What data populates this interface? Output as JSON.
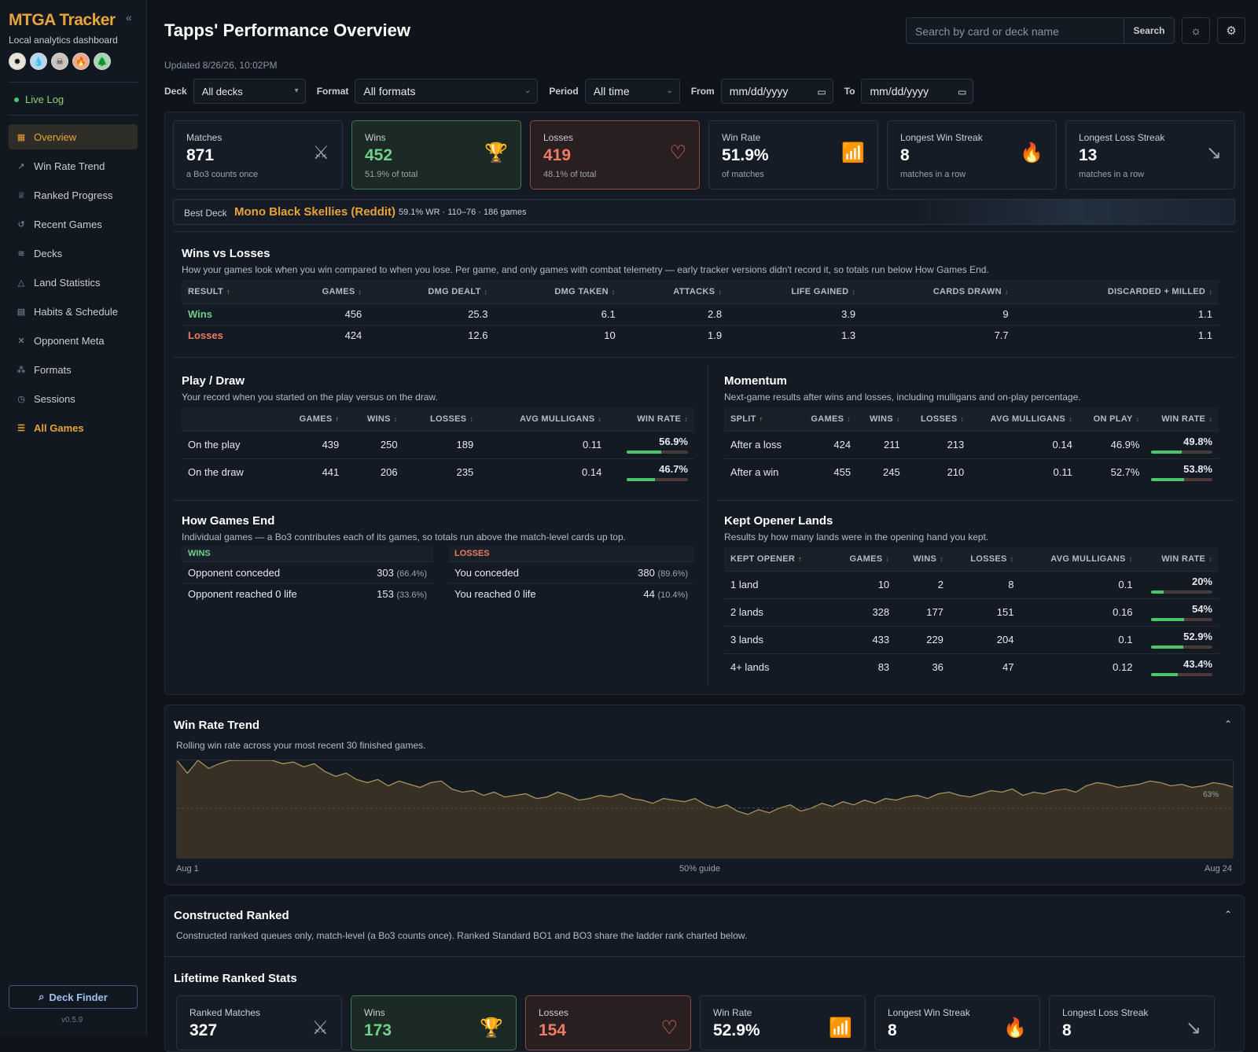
{
  "sidebar": {
    "logo": "MTGA Tracker",
    "collapse": "«",
    "tagline": "Local analytics dashboard",
    "mana": [
      "W",
      "U",
      "B",
      "R",
      "G"
    ],
    "live_log": "Live Log",
    "items": [
      {
        "label": "Overview",
        "icon": "▦"
      },
      {
        "label": "Win Rate Trend",
        "icon": "↗"
      },
      {
        "label": "Ranked Progress",
        "icon": "♕"
      },
      {
        "label": "Recent Games",
        "icon": "↺"
      },
      {
        "label": "Decks",
        "icon": "≋"
      },
      {
        "label": "Land Statistics",
        "icon": "△"
      },
      {
        "label": "Habits & Schedule",
        "icon": "▤"
      },
      {
        "label": "Opponent Meta",
        "icon": "✕"
      },
      {
        "label": "Formats",
        "icon": "⁂"
      },
      {
        "label": "Sessions",
        "icon": "◷"
      },
      {
        "label": "All Games",
        "icon": "☰"
      }
    ],
    "deck_finder": "Deck Finder",
    "version": "v0.5.9"
  },
  "header": {
    "title": "Tapps' Performance Overview",
    "updated": "Updated 8/26/26, 10:02PM",
    "search_placeholder": "Search by card or deck name",
    "search_button": "Search"
  },
  "filters": {
    "deck_label": "Deck",
    "deck_value": "All decks",
    "format_label": "Format",
    "format_value": "All formats",
    "period_label": "Period",
    "period_value": "All time",
    "from_label": "From",
    "from_value": "mm/dd/yyyy",
    "to_label": "To",
    "to_value": "mm/dd/yyyy"
  },
  "cards": [
    {
      "label": "Matches",
      "value": "871",
      "sub": "a Bo3 counts once",
      "icon": "⚔",
      "kind": ""
    },
    {
      "label": "Wins",
      "value": "452",
      "sub": "51.9% of total",
      "icon": "🏆",
      "kind": "win"
    },
    {
      "label": "Losses",
      "value": "419",
      "sub": "48.1% of total",
      "icon": "♡",
      "kind": "loss"
    },
    {
      "label": "Win Rate",
      "value": "51.9%",
      "sub": "of matches",
      "icon": "📶",
      "kind": ""
    },
    {
      "label": "Longest Win Streak",
      "value": "8",
      "sub": "matches in a row",
      "icon": "🔥",
      "kind": ""
    },
    {
      "label": "Longest Loss Streak",
      "value": "13",
      "sub": "matches in a row",
      "icon": "↘",
      "kind": ""
    }
  ],
  "best_deck": {
    "label": "Best Deck",
    "name": "Mono Black Skellies (Reddit)",
    "stats": "59.1% WR · 110–76 · 186 games"
  },
  "wins_vs_losses": {
    "title": "Wins vs Losses",
    "desc": "How your games look when you win compared to when you lose. Per game, and only games with combat telemetry — early tracker versions didn't record it, so totals run below How Games End.",
    "headers": [
      "RESULT",
      "GAMES",
      "DMG DEALT",
      "DMG TAKEN",
      "ATTACKS",
      "LIFE GAINED",
      "CARDS DRAWN",
      "DISCARDED + MILLED"
    ],
    "rows": [
      [
        "Wins",
        "456",
        "25.3",
        "6.1",
        "2.8",
        "3.9",
        "9",
        "1.1"
      ],
      [
        "Losses",
        "424",
        "12.6",
        "10",
        "1.9",
        "1.3",
        "7.7",
        "1.1"
      ]
    ]
  },
  "play_draw": {
    "title": "Play / Draw",
    "desc": "Your record when you started on the play versus on the draw.",
    "headers": [
      "",
      "GAMES",
      "WINS",
      "LOSSES",
      "AVG MULLIGANS",
      "WIN RATE"
    ],
    "rows": [
      {
        "label": "On the play",
        "games": "439",
        "wins": "250",
        "losses": "189",
        "mull": "0.11",
        "wr": "56.9%",
        "wr_num": 56.9
      },
      {
        "label": "On the draw",
        "games": "441",
        "wins": "206",
        "losses": "235",
        "mull": "0.14",
        "wr": "46.7%",
        "wr_num": 46.7
      }
    ]
  },
  "momentum": {
    "title": "Momentum",
    "desc": "Next-game results after wins and losses, including mulligans and on-play percentage.",
    "headers": [
      "SPLIT",
      "GAMES",
      "WINS",
      "LOSSES",
      "AVG MULLIGANS",
      "ON PLAY",
      "WIN RATE"
    ],
    "rows": [
      {
        "label": "After a loss",
        "games": "424",
        "wins": "211",
        "losses": "213",
        "mull": "0.14",
        "onplay": "46.9%",
        "wr": "49.8%",
        "wr_num": 49.8
      },
      {
        "label": "After a win",
        "games": "455",
        "wins": "245",
        "losses": "210",
        "mull": "0.11",
        "onplay": "52.7%",
        "wr": "53.8%",
        "wr_num": 53.8
      }
    ]
  },
  "games_end": {
    "title": "How Games End",
    "desc": "Individual games — a Bo3 contributes each of its games, so totals run above the match-level cards up top.",
    "wins_header": "WINS",
    "losses_header": "LOSSES",
    "wins": [
      {
        "label": "Opponent conceded",
        "count": "303",
        "pct": "(66.4%)"
      },
      {
        "label": "Opponent reached 0 life",
        "count": "153",
        "pct": "(33.6%)"
      }
    ],
    "losses": [
      {
        "label": "You conceded",
        "count": "380",
        "pct": "(89.6%)"
      },
      {
        "label": "You reached 0 life",
        "count": "44",
        "pct": "(10.4%)"
      }
    ]
  },
  "opener_lands": {
    "title": "Kept Opener Lands",
    "desc": "Results by how many lands were in the opening hand you kept.",
    "headers": [
      "KEPT OPENER",
      "GAMES",
      "WINS",
      "LOSSES",
      "AVG MULLIGANS",
      "WIN RATE"
    ],
    "rows": [
      {
        "label": "1 land",
        "games": "10",
        "wins": "2",
        "losses": "8",
        "mull": "0.1",
        "wr": "20%",
        "wr_num": 20
      },
      {
        "label": "2 lands",
        "games": "328",
        "wins": "177",
        "losses": "151",
        "mull": "0.16",
        "wr": "54%",
        "wr_num": 54
      },
      {
        "label": "3 lands",
        "games": "433",
        "wins": "229",
        "losses": "204",
        "mull": "0.1",
        "wr": "52.9%",
        "wr_num": 52.9
      },
      {
        "label": "4+ lands",
        "games": "83",
        "wins": "36",
        "losses": "47",
        "mull": "0.12",
        "wr": "43.4%",
        "wr_num": 43.4
      }
    ]
  },
  "trend": {
    "title": "Win Rate Trend",
    "desc": "Rolling win rate across your most recent 30 finished games.",
    "x_start": "Aug 1",
    "x_mid": "50% guide",
    "x_end": "Aug 24",
    "end_label": "63%"
  },
  "chart_data": {
    "type": "area",
    "title": "Win Rate Trend",
    "xlabel": "",
    "ylabel": "",
    "x_range": [
      "Aug 1",
      "Aug 24"
    ],
    "ylim": [
      0,
      100
    ],
    "series": [
      {
        "values": [
          99,
          72,
          85,
          75,
          78,
          80,
          82,
          84,
          81,
          82,
          78,
          79,
          76,
          78,
          73,
          70,
          72,
          68,
          66,
          68,
          64,
          67,
          65,
          63,
          66,
          67,
          62,
          60,
          61,
          58,
          60,
          57,
          58,
          59,
          56,
          57,
          60,
          58,
          55,
          56,
          58,
          57,
          59,
          56,
          55,
          53,
          56,
          55,
          54,
          56,
          52,
          50,
          52,
          48,
          46,
          49,
          47,
          50,
          52,
          48,
          50,
          53,
          51,
          54,
          52,
          55,
          53,
          56,
          55,
          57,
          58,
          56,
          59,
          60,
          58,
          57,
          59,
          61,
          60,
          62,
          58,
          60,
          59,
          61,
          62,
          60,
          64,
          66,
          65,
          63,
          64,
          65,
          67,
          66,
          64,
          65,
          63,
          64,
          66,
          65,
          63
        ]
      }
    ]
  },
  "ranked": {
    "title": "Constructed Ranked",
    "desc": "Constructed ranked queues only, match-level (a Bo3 counts once). Ranked Standard BO1 and BO3 share the ladder rank charted below.",
    "lifetime_title": "Lifetime Ranked Stats",
    "cards": [
      {
        "label": "Ranked Matches",
        "value": "327",
        "icon": "⚔",
        "kind": ""
      },
      {
        "label": "Wins",
        "value": "173",
        "icon": "🏆",
        "kind": "win"
      },
      {
        "label": "Losses",
        "value": "154",
        "icon": "♡",
        "kind": "loss"
      },
      {
        "label": "Win Rate",
        "value": "52.9%",
        "icon": "📶",
        "kind": ""
      },
      {
        "label": "Longest Win Streak",
        "value": "8",
        "icon": "🔥",
        "kind": ""
      },
      {
        "label": "Longest Loss Streak",
        "value": "8",
        "icon": "↘",
        "kind": ""
      }
    ]
  },
  "colors": {
    "accent": "#e8a33a",
    "win": "#6fd08a",
    "loss": "#f07a63"
  }
}
